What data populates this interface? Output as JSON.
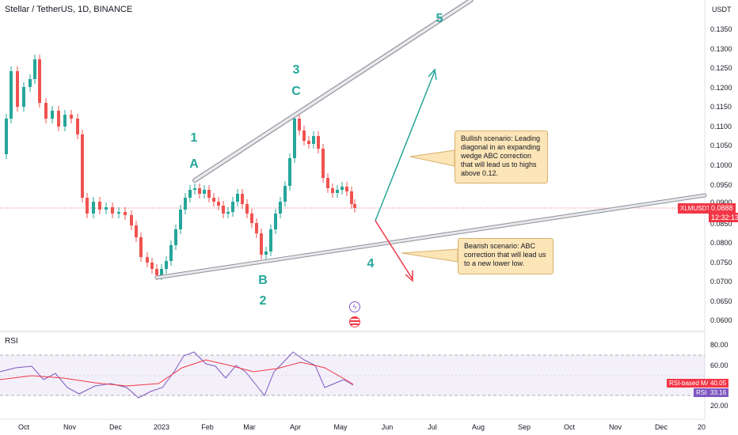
{
  "header": {
    "symbol_title": "Stellar / TetherUS, 1D, BINANCE"
  },
  "price_axis": {
    "unit": "USDT",
    "ticks": [
      "0.1350",
      "0.1300",
      "0.1250",
      "0.1200",
      "0.1150",
      "0.1100",
      "0.1050",
      "0.1000",
      "0.0950",
      "0.0900",
      "0.0850",
      "0.0800",
      "0.0750",
      "0.0700",
      "0.0650",
      "0.0600"
    ],
    "last_price_label": "XLMUSDT",
    "last_price": "0.0888",
    "countdown": "12:32:13",
    "last_price_color": "#f23645"
  },
  "time_axis": {
    "ticks": [
      "Oct",
      "Nov",
      "Dec",
      "2023",
      "Feb",
      "Mar",
      "Apr",
      "May",
      "Jun",
      "Jul",
      "Aug",
      "Sep",
      "Oct",
      "Nov",
      "Dec",
      "20"
    ]
  },
  "waves": {
    "wave1": "1",
    "waveA": "A",
    "wave3": "3",
    "waveC": "C",
    "waveB": "B",
    "wave2": "2",
    "wave4": "4",
    "wave5": "5",
    "color": "#26a69a"
  },
  "callouts": {
    "bullish": "Bullish scenario:  Leading diagonal in an expanding wedge ABC correction that will lead us to highs above 0.12.",
    "bearish": "Bearish scenario:  ABC correction that will lead us to a new lower low."
  },
  "rsi_panel": {
    "label": "RSI",
    "ticks": [
      "80.00",
      "60.00",
      "20.00"
    ],
    "ma_label": "RSI-based MA",
    "ma_value": "40.05",
    "rsi_label": "RSI",
    "rsi_value": "33.16",
    "rsi_color": "#7e57c2",
    "ma_color": "#f23645"
  },
  "icons": [
    "flash-event-icon",
    "us-flag-event-icon"
  ],
  "colors": {
    "up": "#26a69a",
    "down": "#ef5350",
    "wedge": "#b2b5be",
    "bull_arrow": "#26a69a",
    "bear_arrow": "#f23645"
  }
}
